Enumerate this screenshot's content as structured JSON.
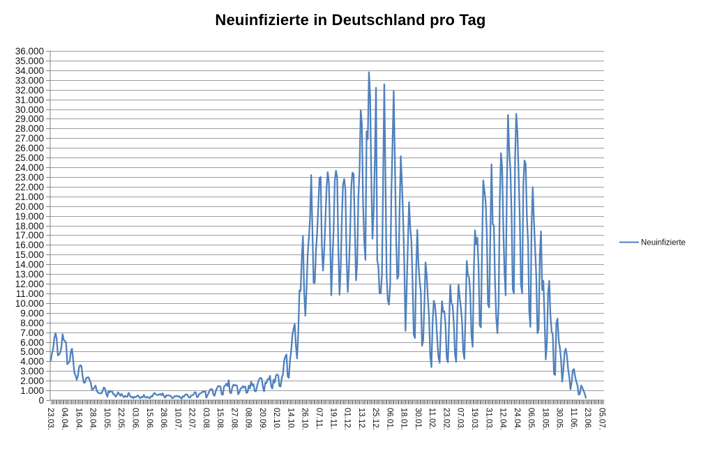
{
  "title": "Neuinfizierte in Deutschland pro Tag",
  "legend": {
    "label": "Neuinfizierte"
  },
  "colors": {
    "series": "#4F81BD",
    "gridline": "#9C9C9C",
    "axis": "#808080",
    "text": "#111111",
    "background": "#FFFFFF"
  },
  "chart_data": {
    "type": "line",
    "title": "Neuinfizierte in Deutschland pro Tag",
    "series_name": "Neuinfizierte",
    "x_start_date": "23.03.2020",
    "x_end_date": "05.07.2021",
    "x_tick_interval_days": 12,
    "grid": true,
    "legend_position": "right",
    "ylim": [
      0,
      36000
    ],
    "y_step": 1000,
    "y_tick_labels": [
      "36.000",
      "35.000",
      "34.000",
      "33.000",
      "32.000",
      "31.000",
      "30.000",
      "29.000",
      "28.000",
      "27.000",
      "26.000",
      "25.000",
      "24.000",
      "23.000",
      "22.000",
      "21.000",
      "20.000",
      "19.000",
      "18.000",
      "17.000",
      "16.000",
      "15.000",
      "14.000",
      "13.000",
      "12.000",
      "11.000",
      "10.000",
      "9.000",
      "8.000",
      "7.000",
      "6.000",
      "5.000",
      "4.000",
      "3.000",
      "2.000",
      "1.000",
      "0"
    ],
    "x_tick_labels": [
      "23.03.",
      "04.04.",
      "16.04.",
      "28.04.",
      "10.05.",
      "22.05.",
      "03.06.",
      "15.06.",
      "28.06.",
      "10.07.",
      "22.07.",
      "03.08.",
      "15.08.",
      "27.08.",
      "08.09.",
      "20.09.",
      "02.10.",
      "14.10.",
      "26.10.",
      "07.11.",
      "19.11.",
      "01.12.",
      "13.12.",
      "25.12.",
      "06.01.",
      "18.01.",
      "30.01.",
      "11.02.",
      "23.02.",
      "07.03.",
      "19.03.",
      "31.03.",
      "12.04.",
      "24.04.",
      "06.05.",
      "18.05.",
      "30.05.",
      "11.06.",
      "23.06.",
      "05.07."
    ],
    "values": [
      4100,
      4800,
      5300,
      6400,
      6900,
      6300,
      4600,
      4700,
      4900,
      5500,
      6800,
      6200,
      6100,
      5900,
      3700,
      3850,
      4000,
      5000,
      5300,
      4100,
      2800,
      2550,
      2100,
      2500,
      3400,
      3600,
      3500,
      2450,
      1800,
      1800,
      2250,
      2350,
      2350,
      2050,
      1750,
      1050,
      1150,
      1300,
      1500,
      950,
      800,
      700,
      700,
      700,
      950,
      1300,
      1200,
      650,
      350,
      950,
      800,
      950,
      900,
      600,
      600,
      350,
      500,
      800,
      650,
      450,
      650,
      450,
      300,
      450,
      350,
      350,
      750,
      500,
      300,
      350,
      200,
      350,
      300,
      400,
      500,
      300,
      200,
      350,
      300,
      550,
      300,
      250,
      350,
      250,
      200,
      400,
      350,
      600,
      750,
      600,
      550,
      500,
      600,
      650,
      500,
      700,
      400,
      250,
      500,
      450,
      500,
      450,
      400,
      200,
      250,
      400,
      400,
      450,
      350,
      400,
      250,
      150,
      400,
      350,
      550,
      600,
      550,
      300,
      250,
      450,
      500,
      550,
      800,
      800,
      300,
      350,
      650,
      700,
      750,
      900,
      850,
      950,
      250,
      500,
      750,
      1050,
      1150,
      1100,
      550,
      450,
      950,
      1200,
      1450,
      1450,
      1400,
      600,
      550,
      1400,
      1500,
      1700,
      1450,
      2050,
      800,
      700,
      1300,
      1600,
      1500,
      1550,
      1500,
      600,
      800,
      1200,
      1250,
      1450,
      1300,
      1400,
      750,
      800,
      1500,
      1200,
      1900,
      1500,
      1650,
      950,
      900,
      1400,
      1900,
      2200,
      2300,
      2200,
      1350,
      900,
      1800,
      1750,
      2150,
      2150,
      2500,
      1400,
      1200,
      2100,
      1800,
      2500,
      2650,
      2550,
      1450,
      1400,
      2300,
      2650,
      4050,
      4500,
      4700,
      2450,
      2300,
      4100,
      5100,
      6650,
      7350,
      7850,
      5600,
      4300,
      6900,
      11300,
      11250,
      14700,
      16900,
      11150,
      8700,
      11400,
      15000,
      16750,
      18700,
      23200,
      17550,
      12100,
      12100,
      15350,
      17200,
      20000,
      22900,
      23000,
      16000,
      13350,
      15350,
      18500,
      21850,
      23500,
      22450,
      16950,
      10800,
      14400,
      17550,
      22600,
      23650,
      22950,
      15750,
      10850,
      13550,
      18650,
      22250,
      22800,
      21700,
      14600,
      11150,
      13600,
      17250,
      22050,
      23450,
      23300,
      17750,
      12350,
      14050,
      20800,
      23700,
      29900,
      28450,
      20200,
      16350,
      14450,
      27700,
      26900,
      33800,
      31300,
      22750,
      16650,
      19550,
      24750,
      32200,
      14450,
      13750,
      11000,
      11000,
      12900,
      22450,
      32550,
      22900,
      12700,
      10300,
      9850,
      11900,
      21250,
      26400,
      31850,
      24700,
      16950,
      12500,
      12800,
      19600,
      25150,
      22350,
      18700,
      13900,
      7150,
      11350,
      15950,
      20400,
      17850,
      16400,
      12250,
      6750,
      6400,
      13200,
      17550,
      14000,
      12300,
      11200,
      5600,
      6100,
      9700,
      14200,
      12900,
      10500,
      8600,
      4550,
      3400,
      8050,
      10250,
      9850,
      8350,
      6100,
      4400,
      3850,
      7550,
      10200,
      9100,
      9150,
      7700,
      4350,
      3900,
      8000,
      11850,
      10000,
      9750,
      7900,
      4750,
      3950,
      9000,
      11900,
      10600,
      9550,
      8100,
      5000,
      4250,
      9150,
      14350,
      12850,
      12650,
      10800,
      6600,
      5500,
      13450,
      17500,
      16050,
      16750,
      13750,
      7700,
      7500,
      15800,
      22650,
      21550,
      20500,
      17200,
      9850,
      9550,
      17050,
      24300,
      18150,
      18000,
      12200,
      8500,
      6900,
      9700,
      20400,
      25450,
      24100,
      17850,
      13250,
      10800,
      21700,
      29400,
      25850,
      23800,
      19200,
      11450,
      11000,
      24900,
      29500,
      27550,
      23400,
      18750,
      11900,
      11000,
      22250,
      24700,
      24350,
      18950,
      16300,
      9150,
      7550,
      18050,
      21950,
      18500,
      15700,
      12650,
      6900,
      7300,
      14900,
      17400,
      11350,
      12300,
      8500,
      4200,
      5850,
      11050,
      12300,
      8750,
      7100,
      6700,
      2700,
      2600,
      7900,
      8400,
      6200,
      5400,
      4200,
      1900,
      3200,
      4900,
      5300,
      4600,
      3200,
      2400,
      1100,
      1800,
      3100,
      3200,
      2400,
      1900,
      1500,
      550,
      650,
      1500,
      1300,
      1000,
      700,
      250,
      null,
      null,
      null,
      null,
      null,
      null,
      null,
      null,
      null,
      null,
      null,
      null,
      null,
      null,
      null
    ]
  }
}
